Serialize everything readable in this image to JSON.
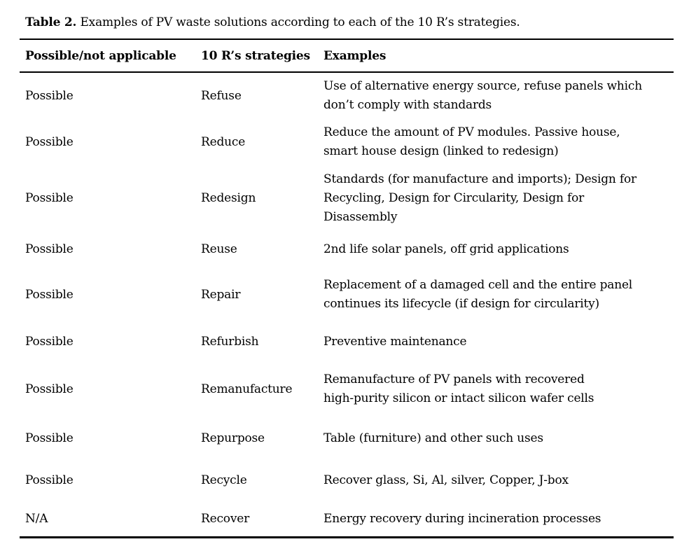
{
  "caption": {
    "label": "Table 2.",
    "text": " Examples of PV waste solutions according to each of the 10 R’s strategies."
  },
  "table": {
    "headers": [
      "Possible/not applicable",
      "10 R’s strategies",
      "Examples"
    ],
    "rows": [
      {
        "status": "Possible",
        "strategy": "Refuse",
        "example": "Use of alternative energy source, refuse panels which\ndon’t comply with standards"
      },
      {
        "status": "Possible",
        "strategy": "Reduce",
        "example": "Reduce the amount of PV modules. Passive house,\nsmart house design (linked to redesign)"
      },
      {
        "status": "Possible",
        "strategy": "Redesign",
        "example": "Standards (for manufacture and imports); Design for\nRecycling, Design for Circularity, Design for\nDisassembly"
      },
      {
        "status": "Possible",
        "strategy": "Reuse",
        "example": "2nd life solar panels, off grid applications"
      },
      {
        "status": "Possible",
        "strategy": "Repair",
        "example": "Replacement of a damaged cell and the entire panel\ncontinues its lifecycle (if design for circularity)"
      },
      {
        "status": "Possible",
        "strategy": "Refurbish",
        "example": "Preventive maintenance"
      },
      {
        "status": "Possible",
        "strategy": "Remanufacture",
        "example": "Remanufacture of PV panels with recovered\nhigh-purity silicon or intact silicon wafer cells"
      },
      {
        "status": "Possible",
        "strategy": "Repurpose",
        "example": "Table (furniture) and other such uses"
      },
      {
        "status": "Possible",
        "strategy": "Recycle",
        "example": "Recover glass, Si, Al, silver, Copper, J-box"
      },
      {
        "status": "N/A",
        "strategy": "Recover",
        "example": "Energy recovery during incineration processes"
      }
    ]
  }
}
